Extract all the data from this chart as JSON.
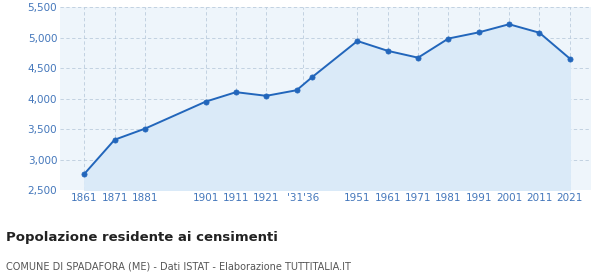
{
  "years": [
    1861,
    1871,
    1881,
    1901,
    1911,
    1921,
    1931,
    1936,
    1951,
    1961,
    1971,
    1981,
    1991,
    2001,
    2011,
    2021
  ],
  "population": [
    2769,
    3329,
    3510,
    3952,
    4107,
    4047,
    4139,
    4349,
    4944,
    4783,
    4671,
    4984,
    5085,
    5218,
    5079,
    4657
  ],
  "ylim": [
    2500,
    5500
  ],
  "yticks": [
    2500,
    3000,
    3500,
    4000,
    4500,
    5000,
    5500
  ],
  "custom_xticks": [
    1861,
    1871,
    1881,
    1901,
    1911,
    1921,
    1933,
    1951,
    1961,
    1971,
    1981,
    1991,
    2001,
    2011,
    2021
  ],
  "custom_xlabels": [
    "1861",
    "1871",
    "1881",
    "1901",
    "1911",
    "1921",
    "'31'36",
    "1951",
    "1961",
    "1971",
    "1981",
    "1991",
    "2001",
    "2011",
    "2021"
  ],
  "xlim": [
    1853,
    2028
  ],
  "line_color": "#2266bb",
  "fill_color": "#daeaf8",
  "marker_color": "#2266bb",
  "bg_color": "#eef5fb",
  "grid_color": "#bbccdd",
  "title": "Popolazione residente ai censimenti",
  "subtitle": "COMUNE DI SPADAFORA (ME) - Dati ISTAT - Elaborazione TUTTITALIA.IT",
  "title_color": "#222222",
  "subtitle_color": "#555555",
  "tick_color": "#4477bb",
  "tick_fontsize": 7.5,
  "title_fontsize": 9.5,
  "subtitle_fontsize": 7.0
}
